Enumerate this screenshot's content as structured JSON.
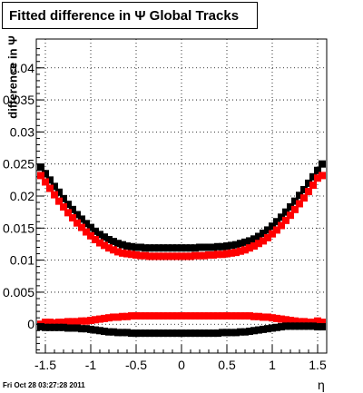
{
  "chart_data": {
    "type": "scatter",
    "title": "Fitted difference in  Ψ   Global Tracks",
    "xlabel": "η",
    "ylabel": "difference in Ψ",
    "xlim": [
      -1.6,
      1.6
    ],
    "ylim": [
      -0.0045,
      0.0445
    ],
    "grid": true,
    "x_ticks": [
      -1.5,
      -1,
      -0.5,
      0,
      0.5,
      1,
      1.5
    ],
    "x_tick_labels": [
      "-1.5",
      "-1",
      "-0.5",
      "0",
      "0.5",
      "1",
      "1.5"
    ],
    "y_ticks": [
      0,
      0.005,
      0.01,
      0.015,
      0.02,
      0.025,
      0.03,
      0.035,
      0.04
    ],
    "y_tick_labels": [
      "0",
      "0.005",
      "0.01",
      "0.015",
      "0.02",
      "0.025",
      "0.03",
      "0.035",
      "0.04"
    ],
    "series": [
      {
        "color": "#000000",
        "x": [
          -1.55,
          -1.5,
          -1.45,
          -1.4,
          -1.35,
          -1.3,
          -1.25,
          -1.2,
          -1.15,
          -1.1,
          -1.05,
          -1.0,
          -0.95,
          -0.9,
          -0.85,
          -0.8,
          -0.75,
          -0.7,
          -0.65,
          -0.6,
          -0.55,
          -0.5,
          -0.45,
          -0.4,
          -0.35,
          -0.3,
          -0.25,
          -0.2,
          -0.15,
          -0.1,
          -0.05,
          0.0,
          0.05,
          0.1,
          0.15,
          0.2,
          0.25,
          0.3,
          0.35,
          0.4,
          0.45,
          0.5,
          0.55,
          0.6,
          0.65,
          0.7,
          0.75,
          0.8,
          0.85,
          0.9,
          0.95,
          1.0,
          1.05,
          1.1,
          1.15,
          1.2,
          1.25,
          1.3,
          1.35,
          1.4,
          1.45,
          1.5,
          1.55
        ],
        "y": [
          0.0245,
          0.0235,
          0.0225,
          0.0215,
          0.0206,
          0.0196,
          0.0187,
          0.0179,
          0.0171,
          0.0164,
          0.0157,
          0.0151,
          0.0145,
          0.014,
          0.0136,
          0.0132,
          0.0129,
          0.0126,
          0.0124,
          0.0122,
          0.0121,
          0.012,
          0.012,
          0.0119,
          0.0119,
          0.0119,
          0.0119,
          0.0119,
          0.0119,
          0.0119,
          0.0119,
          0.0119,
          0.0119,
          0.0119,
          0.0119,
          0.012,
          0.012,
          0.012,
          0.012,
          0.0121,
          0.0121,
          0.0122,
          0.0123,
          0.0124,
          0.0126,
          0.0128,
          0.013,
          0.0133,
          0.0137,
          0.0142,
          0.0147,
          0.0153,
          0.016,
          0.0167,
          0.0175,
          0.0183,
          0.0192,
          0.0201,
          0.021,
          0.022,
          0.023,
          0.024,
          0.025
        ]
      },
      {
        "color": "#ff0000",
        "x": [
          -1.55,
          -1.5,
          -1.45,
          -1.4,
          -1.35,
          -1.3,
          -1.25,
          -1.2,
          -1.15,
          -1.1,
          -1.05,
          -1.0,
          -0.95,
          -0.9,
          -0.85,
          -0.8,
          -0.75,
          -0.7,
          -0.65,
          -0.6,
          -0.55,
          -0.5,
          -0.45,
          -0.4,
          -0.35,
          -0.3,
          -0.25,
          -0.2,
          -0.15,
          -0.1,
          -0.05,
          0.0,
          0.05,
          0.1,
          0.15,
          0.2,
          0.25,
          0.3,
          0.35,
          0.4,
          0.45,
          0.5,
          0.55,
          0.6,
          0.65,
          0.7,
          0.75,
          0.8,
          0.85,
          0.9,
          0.95,
          1.0,
          1.05,
          1.1,
          1.15,
          1.2,
          1.25,
          1.3,
          1.35,
          1.4,
          1.45,
          1.5,
          1.55
        ],
        "y": [
          0.0232,
          0.0222,
          0.0212,
          0.0202,
          0.0192,
          0.0183,
          0.0174,
          0.0166,
          0.0158,
          0.0151,
          0.0144,
          0.0138,
          0.0132,
          0.0127,
          0.0123,
          0.0119,
          0.0116,
          0.0113,
          0.0111,
          0.011,
          0.0109,
          0.0108,
          0.0107,
          0.0107,
          0.0106,
          0.0106,
          0.0106,
          0.0106,
          0.0106,
          0.0106,
          0.0106,
          0.0106,
          0.0106,
          0.0106,
          0.0107,
          0.0107,
          0.0107,
          0.0108,
          0.0108,
          0.0109,
          0.0109,
          0.011,
          0.0111,
          0.0112,
          0.0114,
          0.0116,
          0.0119,
          0.0122,
          0.0126,
          0.013,
          0.0135,
          0.0141,
          0.0147,
          0.0154,
          0.0162,
          0.017,
          0.0179,
          0.0188,
          0.0197,
          0.0207,
          0.0217,
          0.0228,
          0.0232
        ]
      },
      {
        "color": "#ff0000",
        "x": [
          -1.55,
          -1.5,
          -1.45,
          -1.4,
          -1.35,
          -1.3,
          -1.25,
          -1.2,
          -1.15,
          -1.1,
          -1.05,
          -1.0,
          -0.95,
          -0.9,
          -0.85,
          -0.8,
          -0.75,
          -0.7,
          -0.65,
          -0.6,
          -0.55,
          -0.5,
          -0.45,
          -0.4,
          -0.35,
          -0.3,
          -0.25,
          -0.2,
          -0.15,
          -0.1,
          -0.05,
          0.0,
          0.05,
          0.1,
          0.15,
          0.2,
          0.25,
          0.3,
          0.35,
          0.4,
          0.45,
          0.5,
          0.55,
          0.6,
          0.65,
          0.7,
          0.75,
          0.8,
          0.85,
          0.9,
          0.95,
          1.0,
          1.05,
          1.1,
          1.15,
          1.2,
          1.25,
          1.3,
          1.35,
          1.4,
          1.45,
          1.5,
          1.55
        ],
        "y": [
          0.0,
          0.0003,
          0.0003,
          0.0002,
          0.0003,
          0.0003,
          0.0004,
          0.0004,
          0.0004,
          0.0005,
          0.0005,
          0.0006,
          0.0007,
          0.0008,
          0.0009,
          0.001,
          0.0011,
          0.0011,
          0.0012,
          0.0012,
          0.0013,
          0.0013,
          0.0013,
          0.0013,
          0.0013,
          0.0013,
          0.0013,
          0.0013,
          0.0013,
          0.0013,
          0.0013,
          0.0013,
          0.0013,
          0.0013,
          0.0013,
          0.0013,
          0.0013,
          0.0013,
          0.0013,
          0.0013,
          0.0013,
          0.0013,
          0.0013,
          0.0013,
          0.0013,
          0.0013,
          0.0013,
          0.0012,
          0.0012,
          0.0011,
          0.0011,
          0.001,
          0.0009,
          0.0008,
          0.0007,
          0.0006,
          0.0005,
          0.0004,
          0.0004,
          0.0003,
          0.0003,
          0.0005,
          0.0003
        ]
      },
      {
        "color": "#000000",
        "x": [
          -1.55,
          -1.5,
          -1.45,
          -1.4,
          -1.35,
          -1.3,
          -1.25,
          -1.2,
          -1.15,
          -1.1,
          -1.05,
          -1.0,
          -0.95,
          -0.9,
          -0.85,
          -0.8,
          -0.75,
          -0.7,
          -0.65,
          -0.6,
          -0.55,
          -0.5,
          -0.45,
          -0.4,
          -0.35,
          -0.3,
          -0.25,
          -0.2,
          -0.15,
          -0.1,
          -0.05,
          0.0,
          0.05,
          0.1,
          0.15,
          0.2,
          0.25,
          0.3,
          0.35,
          0.4,
          0.45,
          0.5,
          0.55,
          0.6,
          0.65,
          0.7,
          0.75,
          0.8,
          0.85,
          0.9,
          0.95,
          1.0,
          1.05,
          1.1,
          1.15,
          1.2,
          1.25,
          1.3,
          1.35,
          1.4,
          1.45,
          1.5,
          1.55
        ],
        "y": [
          -0.0004,
          -0.0005,
          -0.0005,
          -0.0005,
          -0.0005,
          -0.0005,
          -0.0006,
          -0.0006,
          -0.0006,
          -0.0007,
          -0.0007,
          -0.0008,
          -0.0009,
          -0.001,
          -0.0011,
          -0.0012,
          -0.0012,
          -0.0013,
          -0.0013,
          -0.0013,
          -0.0014,
          -0.0014,
          -0.0014,
          -0.0014,
          -0.0014,
          -0.0014,
          -0.0014,
          -0.0014,
          -0.0014,
          -0.0014,
          -0.0014,
          -0.0014,
          -0.0014,
          -0.0014,
          -0.0014,
          -0.0014,
          -0.0014,
          -0.0014,
          -0.0014,
          -0.0014,
          -0.0013,
          -0.0013,
          -0.0013,
          -0.0013,
          -0.0012,
          -0.0012,
          -0.0011,
          -0.001,
          -0.0009,
          -0.0008,
          -0.0007,
          -0.0006,
          -0.0005,
          -0.0004,
          -0.0003,
          -0.0003,
          -0.0003,
          -0.0003,
          -0.0003,
          -0.0003,
          -0.0003,
          -0.0004,
          -0.0004
        ]
      }
    ]
  },
  "footer": {
    "timestamp": "Fri Oct 28 03:27:28 2011"
  }
}
